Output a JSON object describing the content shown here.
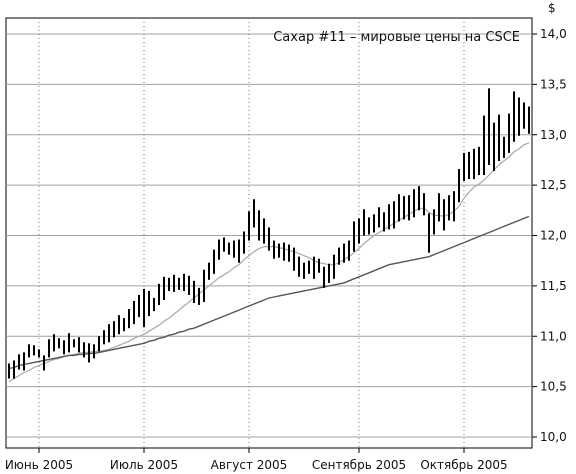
{
  "chart_data": {
    "type": "ohlc",
    "title": "Сахар #11 – мировые цены на CSCE",
    "ylabel": "$",
    "ylim": [
      10.0,
      14.0
    ],
    "yticks": [
      "10,0",
      "10,5",
      "11,0",
      "11,5",
      "12,0",
      "12,5",
      "13,0",
      "13,5",
      "14,0"
    ],
    "yticks_values": [
      10.0,
      10.5,
      11.0,
      11.5,
      12.0,
      12.5,
      13.0,
      13.5,
      14.0
    ],
    "xticks": [
      "Июнь 2005",
      "Июль 2005",
      "Август 2005",
      "Сентябрь 2005",
      "Октябрь 2005"
    ],
    "xticks_index": [
      6,
      27,
      48,
      70,
      91
    ],
    "grid": true,
    "series": [
      {
        "kind": "ohlc",
        "bars": [
          [
            10.58,
            10.73
          ],
          [
            10.58,
            10.76
          ],
          [
            10.67,
            10.82
          ],
          [
            10.66,
            10.84
          ],
          [
            10.79,
            10.92
          ],
          [
            10.81,
            10.91
          ],
          [
            10.79,
            10.87
          ],
          [
            10.66,
            10.81
          ],
          [
            10.79,
            10.97
          ],
          [
            10.85,
            11.02
          ],
          [
            10.88,
            10.98
          ],
          [
            10.82,
            10.96
          ],
          [
            10.84,
            11.03
          ],
          [
            10.89,
            10.97
          ],
          [
            10.84,
            10.99
          ],
          [
            10.79,
            10.94
          ],
          [
            10.74,
            10.93
          ],
          [
            10.78,
            10.92
          ],
          [
            10.85,
            11.0
          ],
          [
            10.92,
            11.06
          ],
          [
            10.94,
            11.12
          ],
          [
            10.99,
            11.15
          ],
          [
            11.02,
            11.21
          ],
          [
            11.05,
            11.18
          ],
          [
            11.08,
            11.27
          ],
          [
            11.12,
            11.35
          ],
          [
            11.19,
            11.41
          ],
          [
            11.09,
            11.47
          ],
          [
            11.2,
            11.45
          ],
          [
            11.25,
            11.38
          ],
          [
            11.31,
            11.52
          ],
          [
            11.36,
            11.59
          ],
          [
            11.45,
            11.58
          ],
          [
            11.44,
            11.61
          ],
          [
            11.46,
            11.58
          ],
          [
            11.45,
            11.62
          ],
          [
            11.41,
            11.6
          ],
          [
            11.33,
            11.55
          ],
          [
            11.31,
            11.48
          ],
          [
            11.34,
            11.66
          ],
          [
            11.56,
            11.73
          ],
          [
            11.62,
            11.86
          ],
          [
            11.76,
            11.96
          ],
          [
            11.84,
            11.98
          ],
          [
            11.81,
            11.93
          ],
          [
            11.78,
            11.95
          ],
          [
            11.73,
            11.96
          ],
          [
            11.82,
            12.04
          ],
          [
            11.95,
            12.24
          ],
          [
            12.08,
            12.36
          ],
          [
            11.95,
            12.25
          ],
          [
            11.92,
            12.17
          ],
          [
            11.85,
            12.08
          ],
          [
            11.77,
            11.95
          ],
          [
            11.78,
            11.92
          ],
          [
            11.75,
            11.93
          ],
          [
            11.74,
            11.91
          ],
          [
            11.65,
            11.88
          ],
          [
            11.59,
            11.79
          ],
          [
            11.57,
            11.73
          ],
          [
            11.62,
            11.75
          ],
          [
            11.57,
            11.79
          ],
          [
            11.63,
            11.77
          ],
          [
            11.48,
            11.69
          ],
          [
            11.53,
            11.72
          ],
          [
            11.57,
            11.81
          ],
          [
            11.71,
            11.88
          ],
          [
            11.73,
            11.92
          ],
          [
            11.75,
            11.95
          ],
          [
            11.84,
            12.14
          ],
          [
            11.92,
            12.17
          ],
          [
            12.0,
            12.26
          ],
          [
            12.01,
            12.18
          ],
          [
            12.03,
            12.21
          ],
          [
            12.08,
            12.28
          ],
          [
            12.04,
            12.23
          ],
          [
            12.06,
            12.31
          ],
          [
            12.07,
            12.34
          ],
          [
            12.14,
            12.41
          ],
          [
            12.16,
            12.39
          ],
          [
            12.15,
            12.4
          ],
          [
            12.18,
            12.46
          ],
          [
            12.25,
            12.49
          ],
          [
            12.2,
            12.42
          ],
          [
            11.83,
            12.22
          ],
          [
            12.01,
            12.26
          ],
          [
            12.14,
            12.42
          ],
          [
            12.05,
            12.36
          ],
          [
            12.15,
            12.4
          ],
          [
            12.14,
            12.44
          ],
          [
            12.33,
            12.66
          ],
          [
            12.54,
            12.82
          ],
          [
            12.56,
            12.83
          ],
          [
            12.56,
            12.86
          ],
          [
            12.6,
            12.88
          ],
          [
            12.6,
            13.19
          ],
          [
            12.7,
            13.46
          ],
          [
            12.64,
            13.12
          ],
          [
            12.74,
            13.2
          ],
          [
            12.77,
            12.98
          ],
          [
            12.82,
            13.21
          ],
          [
            12.93,
            13.43
          ],
          [
            12.99,
            13.37
          ],
          [
            13.06,
            13.32
          ],
          [
            13.01,
            13.28
          ]
        ]
      },
      {
        "kind": "line",
        "y": [
          10.55,
          10.58,
          10.61,
          10.64,
          10.66,
          10.69,
          10.71,
          10.73,
          10.75,
          10.77,
          10.78,
          10.8,
          10.81,
          10.82,
          10.83,
          10.84,
          10.84,
          10.85,
          10.85,
          10.86,
          10.87,
          10.89,
          10.91,
          10.93,
          10.95,
          10.98,
          11.0,
          11.02,
          11.05,
          11.08,
          11.11,
          11.15,
          11.18,
          11.22,
          11.26,
          11.3,
          11.34,
          11.38,
          11.42,
          11.46,
          11.5,
          11.54,
          11.58,
          11.61,
          11.64,
          11.68,
          11.71,
          11.76,
          11.8,
          11.84,
          11.87,
          11.89,
          11.89,
          11.89,
          11.88,
          11.87,
          11.85,
          11.84,
          11.82,
          11.8,
          11.78,
          11.75,
          11.73,
          11.72,
          11.71,
          11.71,
          11.73,
          11.76,
          11.79,
          11.83,
          11.87,
          11.92,
          11.96,
          12.0,
          12.03,
          12.06,
          12.09,
          12.12,
          12.15,
          12.18,
          12.21,
          12.24,
          12.27,
          12.27,
          12.23,
          12.2,
          12.2,
          12.19,
          12.21,
          12.24,
          12.29,
          12.37,
          12.43,
          12.48,
          12.51,
          12.55,
          12.6,
          12.65,
          12.7,
          12.74,
          12.78,
          12.83,
          12.86,
          12.9,
          12.92
        ]
      },
      {
        "kind": "line",
        "y": [
          10.68,
          10.69,
          10.71,
          10.72,
          10.73,
          10.74,
          10.75,
          10.76,
          10.77,
          10.78,
          10.79,
          10.8,
          10.81,
          10.81,
          10.82,
          10.82,
          10.83,
          10.83,
          10.84,
          10.85,
          10.86,
          10.87,
          10.88,
          10.89,
          10.9,
          10.91,
          10.92,
          10.93,
          10.95,
          10.96,
          10.98,
          10.99,
          11.01,
          11.02,
          11.04,
          11.05,
          11.07,
          11.08,
          11.1,
          11.12,
          11.14,
          11.16,
          11.18,
          11.2,
          11.22,
          11.24,
          11.26,
          11.28,
          11.3,
          11.32,
          11.34,
          11.36,
          11.38,
          11.39,
          11.4,
          11.41,
          11.42,
          11.43,
          11.44,
          11.45,
          11.46,
          11.47,
          11.48,
          11.49,
          11.5,
          11.51,
          11.52,
          11.53,
          11.55,
          11.57,
          11.59,
          11.61,
          11.63,
          11.65,
          11.67,
          11.69,
          11.71,
          11.72,
          11.73,
          11.74,
          11.75,
          11.76,
          11.77,
          11.78,
          11.79,
          11.81,
          11.83,
          11.85,
          11.87,
          11.89,
          11.91,
          11.93,
          11.95,
          11.97,
          11.99,
          12.01,
          12.03,
          12.05,
          12.07,
          12.09,
          12.11,
          12.13,
          12.15,
          12.17,
          12.19
        ]
      }
    ]
  },
  "colors": {
    "bars": "#000000",
    "fast_ma": "#a8a8a8",
    "slow_ma": "#555555",
    "grid": "#a0a0a0",
    "frame": "#000000"
  }
}
